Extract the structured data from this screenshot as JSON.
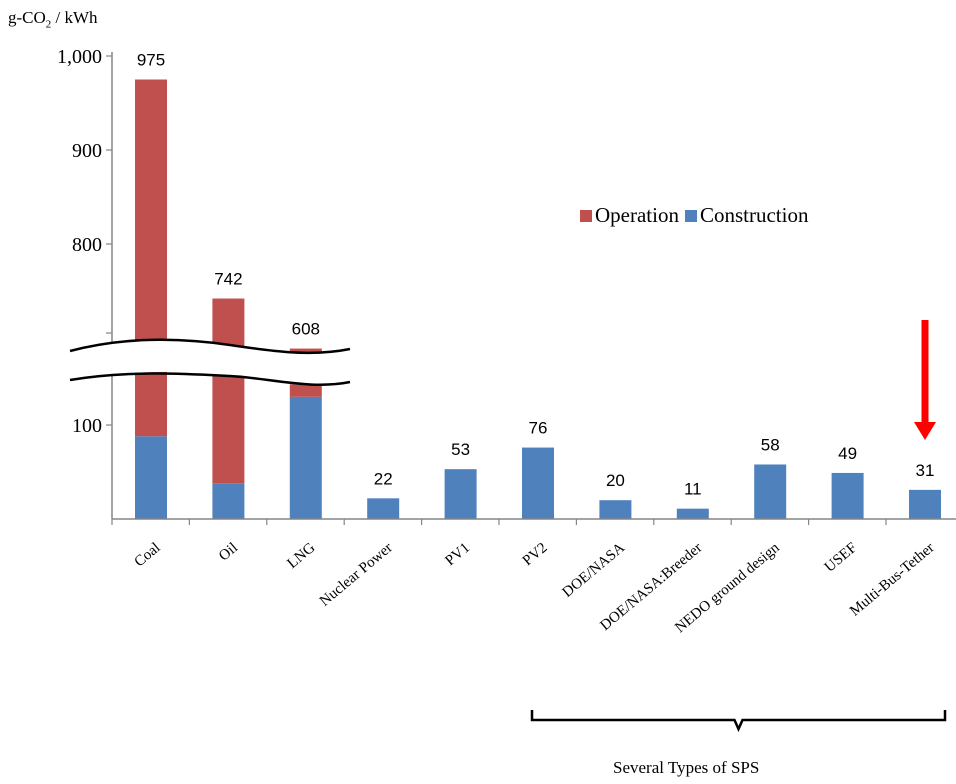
{
  "chart_data": {
    "type": "bar",
    "stacked": true,
    "ylabel": {
      "prefix": "g-CO",
      "sub": "2",
      "suffix": " / kWh"
    },
    "upper_ticks": [
      {
        "value": 1000,
        "label": "1,000"
      },
      {
        "value": 900,
        "label": "900"
      },
      {
        "value": 800,
        "label": "800"
      }
    ],
    "lower_ticks": [
      {
        "value": 100,
        "label": "100"
      }
    ],
    "axis_break": true,
    "categories": [
      "Coal",
      "Oil",
      "LNG",
      "Nuclear Power",
      "PV1",
      "PV2",
      "DOE/NASA",
      "DOE/NASA:Breeder",
      "NEDO ground design",
      "USEF",
      "Multi-Bus-Tether"
    ],
    "totals": [
      975,
      742,
      608,
      22,
      53,
      76,
      20,
      11,
      58,
      49,
      31
    ],
    "series": [
      {
        "name": "Operation",
        "color": "#c0504d",
        "values": [
          887,
          704,
          478,
          0,
          0,
          0,
          0,
          0,
          0,
          0,
          0
        ]
      },
      {
        "name": "Construction",
        "color": "#4f81bd",
        "values": [
          88,
          38,
          130,
          22,
          53,
          76,
          20,
          11,
          58,
          49,
          31
        ]
      }
    ],
    "legend_position": "upper-right",
    "highlight_arrow": {
      "category": "Multi-Bus-Tether",
      "color": "#ff0000"
    },
    "bracket_label": "Several Types of SPS"
  }
}
